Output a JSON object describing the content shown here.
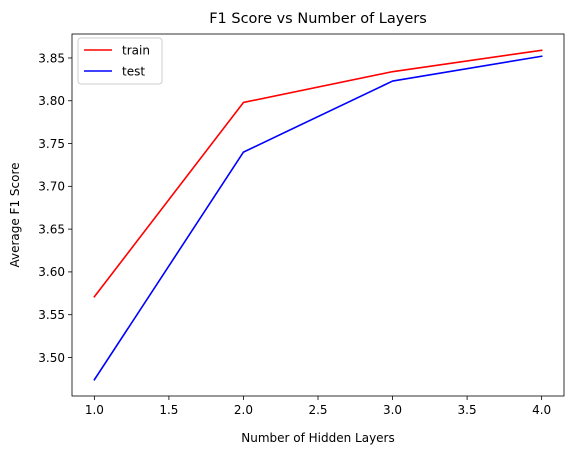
{
  "chart_data": {
    "type": "line",
    "title": "F1 Score vs Number of Layers",
    "xlabel": "Number of Hidden Layers",
    "ylabel": "Average F1 Score",
    "x": [
      1.0,
      2.0,
      3.0,
      4.0
    ],
    "series": [
      {
        "name": "train",
        "values": [
          3.571,
          3.798,
          3.834,
          3.859
        ],
        "color": "#ff0000"
      },
      {
        "name": "test",
        "values": [
          3.474,
          3.74,
          3.823,
          3.852
        ],
        "color": "#0000ff"
      }
    ],
    "xlim": [
      0.85,
      4.15
    ],
    "ylim": [
      3.455,
      3.878
    ],
    "xticks": [
      1.0,
      1.5,
      2.0,
      2.5,
      3.0,
      3.5,
      4.0
    ],
    "xtick_labels": [
      "1.0",
      "1.5",
      "2.0",
      "2.5",
      "3.0",
      "3.5",
      "4.0"
    ],
    "yticks": [
      3.5,
      3.55,
      3.6,
      3.65,
      3.7,
      3.75,
      3.8,
      3.85
    ],
    "ytick_labels": [
      "3.50",
      "3.55",
      "3.60",
      "3.65",
      "3.70",
      "3.75",
      "3.80",
      "3.85"
    ],
    "grid": false,
    "legend_position": "top-left"
  }
}
